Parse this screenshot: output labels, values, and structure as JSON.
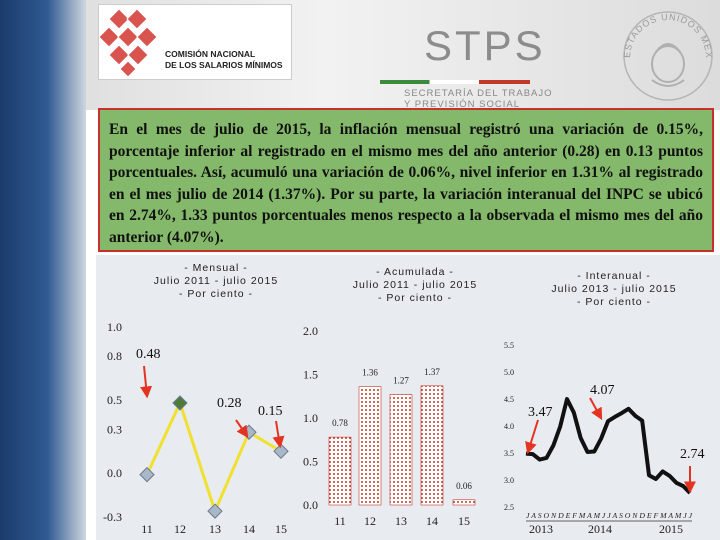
{
  "header": {
    "org_name_line1": "Comisión Nacional",
    "org_name_line2": "de los Salarios Mínimos",
    "ministry_acronym": "STPS",
    "ministry_line1": "SECRETARÍA DEL TRABAJO",
    "ministry_line2": "Y PREVISIÓN SOCIAL",
    "seal_text": "ESTADOS UNIDOS MEXICANOS"
  },
  "summary": {
    "text": "En el mes de julio de 2015, la inflación mensual registró una variación de 0.15%, porcentaje inferior al registrado en el mismo mes del año anterior (0.28) en 0.13 puntos porcentuales. Así, acumuló una variación de 0.06%, nivel inferior en 1.31% al registrado en el mes julio de 2014 (1.37%). Por su parte, la variación interanual del INPC se ubicó en 2.74%, 1.33 puntos porcentuales menos respecto a la observada el mismo mes del año anterior (4.07%)."
  },
  "colors": {
    "summary_bg": "#84b86a",
    "summary_border": "#c9302c",
    "line_mensual": "#f0e030",
    "marker": "#a8b8c8",
    "marker_highlight": "#4e7a3a",
    "arrow": "#e53322",
    "bar_pattern": "#c0392b",
    "line_interanual": "#111111"
  },
  "chart_data": [
    {
      "type": "line",
      "title": "- Mensual -\nJulio 2011 - julio 2015\n- Por ciento -",
      "categories": [
        "11",
        "12",
        "13",
        "14",
        "15"
      ],
      "values": [
        -0.01,
        0.48,
        -0.26,
        0.28,
        0.15
      ],
      "yticks": [
        "1.0",
        "0.8",
        "0.5",
        "0.3",
        "0.0",
        "-0.3"
      ],
      "ylim": [
        -0.3,
        1.0
      ],
      "annotations": [
        {
          "label": "0.48",
          "category": "12"
        },
        {
          "label": "0.28",
          "category": "14"
        },
        {
          "label": "0.15",
          "category": "15"
        }
      ]
    },
    {
      "type": "bar",
      "title": "- Acumulada -\nJulio 2011 - julio 2015\n- Por ciento -",
      "categories": [
        "11",
        "12",
        "13",
        "14",
        "15"
      ],
      "values": [
        0.78,
        1.36,
        1.27,
        1.37,
        0.06
      ],
      "data_labels": [
        "0.78",
        "1.36",
        "1.27",
        "1.37",
        "0.06"
      ],
      "yticks": [
        "2.0",
        "1.5",
        "1.0",
        "0.5",
        "0.0"
      ],
      "ylim": [
        0,
        2.0
      ]
    },
    {
      "type": "line",
      "title": "- Interanual -\nJulio 2013 - julio 2015\n- Por ciento -",
      "x_axis_months": "J A S O N D E F M A M J J A S O N D E F M A M J J",
      "years": [
        "2013",
        "2014",
        "2015"
      ],
      "values": [
        3.47,
        3.46,
        3.36,
        3.39,
        3.62,
        3.97,
        4.48,
        4.23,
        3.76,
        3.5,
        3.51,
        3.75,
        4.07,
        4.15,
        4.22,
        4.3,
        4.17,
        4.08,
        3.07,
        3.0,
        3.14,
        3.06,
        2.93,
        2.87,
        2.74
      ],
      "yticks": [
        "5.5",
        "5.0",
        "4.5",
        "4.0",
        "3.5",
        "3.0",
        "2.5"
      ],
      "ylim": [
        2.5,
        5.5
      ],
      "annotations": [
        {
          "label": "3.47",
          "index": 0
        },
        {
          "label": "4.07",
          "index": 12
        },
        {
          "label": "2.74",
          "index": 24
        }
      ]
    }
  ]
}
